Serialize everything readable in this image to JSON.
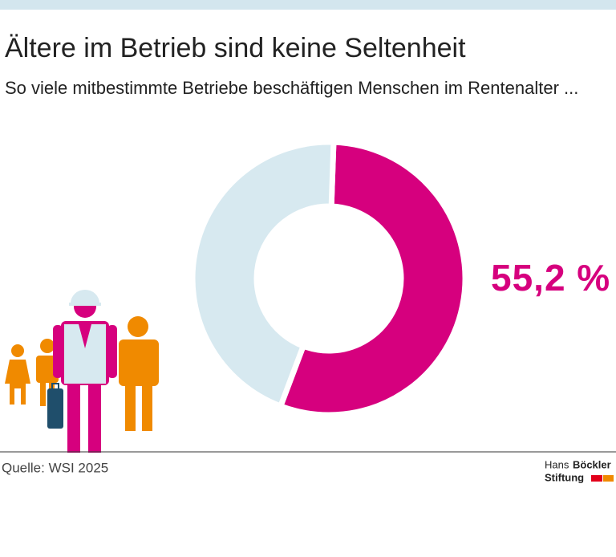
{
  "chart_data": {
    "type": "donut",
    "title": "Ältere im Betrieb sind keine Seltenheit",
    "subtitle": "So viele mitbestimmte Betriebe beschäftigen Menschen im Rentenalter ...",
    "values": [
      55.2,
      44.8
    ],
    "value_labels": [
      "55,2 %",
      null
    ],
    "colors": [
      "#d6007e",
      "#d7e9f0"
    ],
    "source": "Quelle: WSI 2025",
    "logo": [
      "Hans",
      "Böckler",
      "Stiftung"
    ]
  }
}
